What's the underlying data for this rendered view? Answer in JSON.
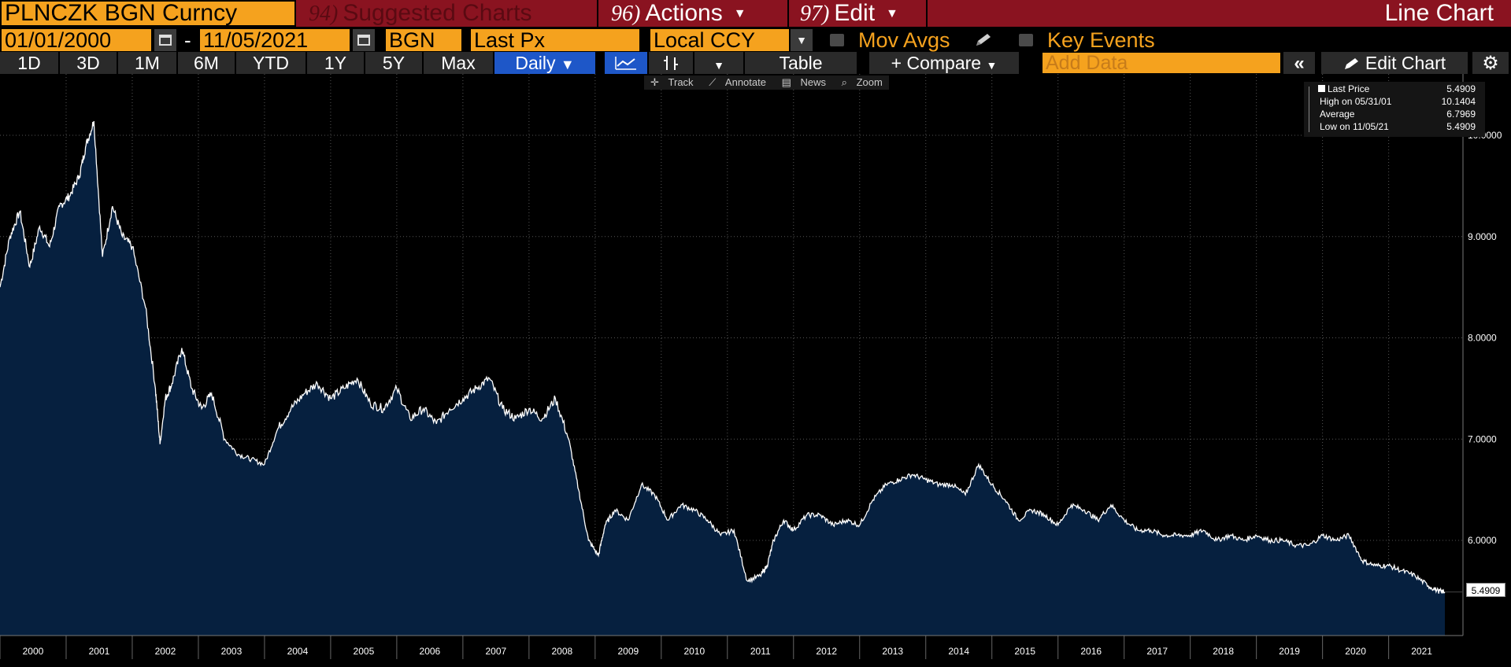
{
  "header": {
    "ticker": "PLNCZK BGN Curncy",
    "suggested": {
      "num": "94)",
      "label": "Suggested Charts"
    },
    "actions": {
      "num": "96)",
      "label": "Actions"
    },
    "edit": {
      "num": "97)",
      "label": "Edit"
    },
    "chart_title": "Line Chart"
  },
  "controls": {
    "start_date": "01/01/2000",
    "date_separator": "-",
    "end_date": "11/05/2021",
    "source": "BGN",
    "field": "Last Px",
    "currency": "Local CCY",
    "mov_avgs": "Mov Avgs",
    "key_events": "Key Events"
  },
  "range_buttons": [
    "1D",
    "3D",
    "1M",
    "6M",
    "YTD",
    "1Y",
    "5Y",
    "Max"
  ],
  "toolbar": {
    "daily": "Daily",
    "table": "Table",
    "compare": "+ Compare",
    "add_data_placeholder": "Add Data",
    "edit_chart": "Edit Chart"
  },
  "chart_tools": [
    "Track",
    "Annotate",
    "News",
    "Zoom"
  ],
  "legend": {
    "last_price": {
      "label": "Last Price",
      "value": "5.4909"
    },
    "high": {
      "label": "High on 05/31/01",
      "value": "10.1404"
    },
    "average": {
      "label": "Average",
      "value": "6.7969"
    },
    "low": {
      "label": "Low on 11/05/21",
      "value": "5.4909"
    }
  },
  "last_value_tag": "5.4909",
  "colors": {
    "accent_orange": "#f5a21e",
    "header_red": "#8a1320",
    "area_fill": "#06203f",
    "active_blue": "#1e57c8"
  },
  "chart_data": {
    "type": "area",
    "title": "",
    "xlabel": "",
    "ylabel": "",
    "ylim": [
      5.0,
      10.5
    ],
    "yticks": [
      "10.0000",
      "9.0000",
      "8.0000",
      "7.0000",
      "6.0000"
    ],
    "xticks": [
      "2000",
      "2001",
      "2002",
      "2003",
      "2004",
      "2005",
      "2006",
      "2007",
      "2008",
      "2009",
      "2010",
      "2011",
      "2012",
      "2013",
      "2014",
      "2015",
      "2016",
      "2017",
      "2018",
      "2019",
      "2020",
      "2021"
    ],
    "grid": true,
    "legend_placement": "top-right",
    "series": [
      {
        "name": "Last Price",
        "x": [
          2000.0,
          2000.15,
          2000.3,
          2000.45,
          2000.6,
          2000.75,
          2000.9,
          2001.05,
          2001.2,
          2001.3,
          2001.42,
          2001.55,
          2001.7,
          2001.85,
          2002.0,
          2002.2,
          2002.35,
          2002.42,
          2002.5,
          2002.6,
          2002.75,
          2002.9,
          2003.05,
          2003.2,
          2003.4,
          2003.6,
          2003.8,
          2004.0,
          2004.2,
          2004.4,
          2004.6,
          2004.8,
          2005.0,
          2005.2,
          2005.4,
          2005.6,
          2005.8,
          2006.0,
          2006.2,
          2006.4,
          2006.6,
          2006.8,
          2007.0,
          2007.2,
          2007.4,
          2007.6,
          2007.8,
          2008.0,
          2008.2,
          2008.4,
          2008.6,
          2008.75,
          2008.9,
          2009.05,
          2009.15,
          2009.3,
          2009.5,
          2009.7,
          2009.9,
          2010.1,
          2010.3,
          2010.5,
          2010.7,
          2010.9,
          2011.1,
          2011.3,
          2011.5,
          2011.6,
          2011.7,
          2011.85,
          2012.0,
          2012.2,
          2012.4,
          2012.6,
          2012.8,
          2013.0,
          2013.2,
          2013.4,
          2013.6,
          2013.8,
          2014.0,
          2014.2,
          2014.4,
          2014.6,
          2014.8,
          2015.0,
          2015.2,
          2015.4,
          2015.6,
          2015.8,
          2016.0,
          2016.2,
          2016.4,
          2016.6,
          2016.8,
          2017.0,
          2017.2,
          2017.4,
          2017.6,
          2017.8,
          2018.0,
          2018.2,
          2018.4,
          2018.6,
          2018.8,
          2019.0,
          2019.2,
          2019.4,
          2019.6,
          2019.8,
          2020.0,
          2020.2,
          2020.4,
          2020.6,
          2020.8,
          2021.0,
          2021.2,
          2021.4,
          2021.6,
          2021.75,
          2021.85
        ],
        "values": [
          8.5,
          9.0,
          9.25,
          8.7,
          9.1,
          8.9,
          9.3,
          9.4,
          9.6,
          9.9,
          10.14,
          8.8,
          9.3,
          9.0,
          8.9,
          8.3,
          7.5,
          6.95,
          7.4,
          7.55,
          7.9,
          7.5,
          7.3,
          7.45,
          7.0,
          6.85,
          6.8,
          6.75,
          7.1,
          7.3,
          7.45,
          7.55,
          7.4,
          7.5,
          7.6,
          7.35,
          7.3,
          7.5,
          7.2,
          7.3,
          7.15,
          7.3,
          7.4,
          7.5,
          7.6,
          7.3,
          7.2,
          7.3,
          7.2,
          7.4,
          7.0,
          6.5,
          6.0,
          5.85,
          6.15,
          6.3,
          6.2,
          6.55,
          6.45,
          6.2,
          6.35,
          6.3,
          6.2,
          6.05,
          6.1,
          5.6,
          5.65,
          5.75,
          6.0,
          6.2,
          6.1,
          6.25,
          6.25,
          6.15,
          6.2,
          6.15,
          6.4,
          6.55,
          6.6,
          6.65,
          6.6,
          6.55,
          6.55,
          6.45,
          6.75,
          6.55,
          6.4,
          6.2,
          6.3,
          6.25,
          6.15,
          6.35,
          6.3,
          6.2,
          6.35,
          6.2,
          6.1,
          6.1,
          6.05,
          6.05,
          6.05,
          6.1,
          6.0,
          6.05,
          6.0,
          6.05,
          6.0,
          6.0,
          5.95,
          5.95,
          6.05,
          6.0,
          6.05,
          5.8,
          5.75,
          5.75,
          5.7,
          5.65,
          5.55,
          5.5,
          5.49
        ]
      }
    ]
  }
}
